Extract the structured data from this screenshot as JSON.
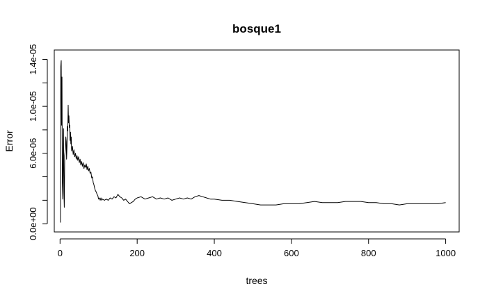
{
  "chart_data": {
    "type": "line",
    "title": "bosque1",
    "xlabel": "trees",
    "ylabel": "Error",
    "xlim": [
      -15,
      1035
    ],
    "ylim": [
      -7e-07,
      1.48e-05
    ],
    "x_ticks": [
      0,
      200,
      400,
      600,
      800,
      1000
    ],
    "x_tick_labels": [
      "0",
      "200",
      "400",
      "600",
      "800",
      "1000"
    ],
    "y_ticks": [
      0,
      2e-06,
      4e-06,
      6e-06,
      8e-06,
      1e-05,
      1.2e-05,
      1.4e-05
    ],
    "y_tick_labels": [
      "0.0e+00",
      "",
      "",
      "6.0e-06",
      "",
      "1.0e-05",
      "",
      "1.4e-05"
    ],
    "grid": false,
    "line_color": "#000000",
    "series": [
      {
        "x": [
          1,
          2,
          3,
          4,
          5,
          6,
          7,
          8,
          9,
          10,
          11,
          12,
          13,
          14,
          15,
          16,
          17,
          18,
          19,
          20,
          21,
          22,
          23,
          24,
          25,
          26,
          27,
          28,
          29,
          30,
          32,
          34,
          36,
          38,
          40,
          42,
          44,
          46,
          48,
          50,
          52,
          54,
          56,
          58,
          60,
          62,
          64,
          66,
          68,
          70,
          72,
          74,
          76,
          78,
          80,
          82,
          84,
          86,
          88,
          90,
          92,
          94,
          96,
          98,
          100,
          102,
          104,
          106,
          108,
          110,
          115,
          120,
          125,
          130,
          135,
          140,
          145,
          150,
          155,
          160,
          165,
          170,
          175,
          180,
          185,
          190,
          195,
          200,
          210,
          220,
          230,
          240,
          250,
          260,
          270,
          280,
          290,
          300,
          310,
          320,
          330,
          340,
          350,
          360,
          370,
          380,
          390,
          400,
          420,
          440,
          460,
          480,
          500,
          520,
          540,
          560,
          580,
          600,
          620,
          640,
          660,
          680,
          700,
          720,
          740,
          760,
          780,
          800,
          820,
          840,
          860,
          880,
          900,
          920,
          940,
          960,
          980,
          1000
        ],
        "values": [
          1e-07,
          1.34e-05,
          1.39e-05,
          8.4e-06,
          1.25e-05,
          3.5e-06,
          2.1e-06,
          4.8e-06,
          8.1e-06,
          2.6e-06,
          1.4e-06,
          5.8e-06,
          6.1e-06,
          6.4e-06,
          7.4e-06,
          7e-06,
          5.5e-06,
          6.6e-06,
          8.3e-06,
          7.9e-06,
          1.01e-05,
          8.6e-06,
          9.2e-06,
          8.2e-06,
          8.4e-06,
          7.1e-06,
          7.8e-06,
          6.8e-06,
          7.4e-06,
          6.2e-06,
          6.6e-06,
          5.9e-06,
          6.3e-06,
          5.7e-06,
          6e-06,
          5.5e-06,
          5.8e-06,
          5.4e-06,
          5.7e-06,
          5.2e-06,
          5.5e-06,
          5e-06,
          5.3e-06,
          4.9e-06,
          5.2e-06,
          4.7e-06,
          5e-06,
          4.8e-06,
          5.1e-06,
          4.6e-06,
          4.9e-06,
          4.5e-06,
          4.7e-06,
          4.3e-06,
          4.4e-06,
          3.9e-06,
          4e-06,
          3.5e-06,
          3.3e-06,
          3e-06,
          2.8e-06,
          2.7e-06,
          2.5e-06,
          2.4e-06,
          2.1e-06,
          2.2e-06,
          2e-06,
          2.2e-06,
          2e-06,
          2.1e-06,
          2e-06,
          2.1e-06,
          2e-06,
          2.2e-06,
          2.1e-06,
          2.3e-06,
          2.2e-06,
          2.5e-06,
          2.3e-06,
          2.2e-06,
          2e-06,
          2.1e-06,
          1.9e-06,
          1.7e-06,
          1.8e-06,
          1.9e-06,
          2.1e-06,
          2.2e-06,
          2.3e-06,
          2.1e-06,
          2.2e-06,
          2.3e-06,
          2.1e-06,
          2.2e-06,
          2.1e-06,
          2.2e-06,
          2e-06,
          2.1e-06,
          2.2e-06,
          2.1e-06,
          2.2e-06,
          2.1e-06,
          2.3e-06,
          2.4e-06,
          2.3e-06,
          2.2e-06,
          2.1e-06,
          2.1e-06,
          2e-06,
          2e-06,
          1.9e-06,
          1.8e-06,
          1.7e-06,
          1.6e-06,
          1.6e-06,
          1.6e-06,
          1.7e-06,
          1.7e-06,
          1.7e-06,
          1.8e-06,
          1.9e-06,
          1.8e-06,
          1.8e-06,
          1.8e-06,
          1.9e-06,
          1.9e-06,
          1.9e-06,
          1.8e-06,
          1.8e-06,
          1.7e-06,
          1.7e-06,
          1.6e-06,
          1.7e-06,
          1.7e-06,
          1.7e-06,
          1.7e-06,
          1.7e-06,
          1.8e-06
        ]
      }
    ]
  }
}
